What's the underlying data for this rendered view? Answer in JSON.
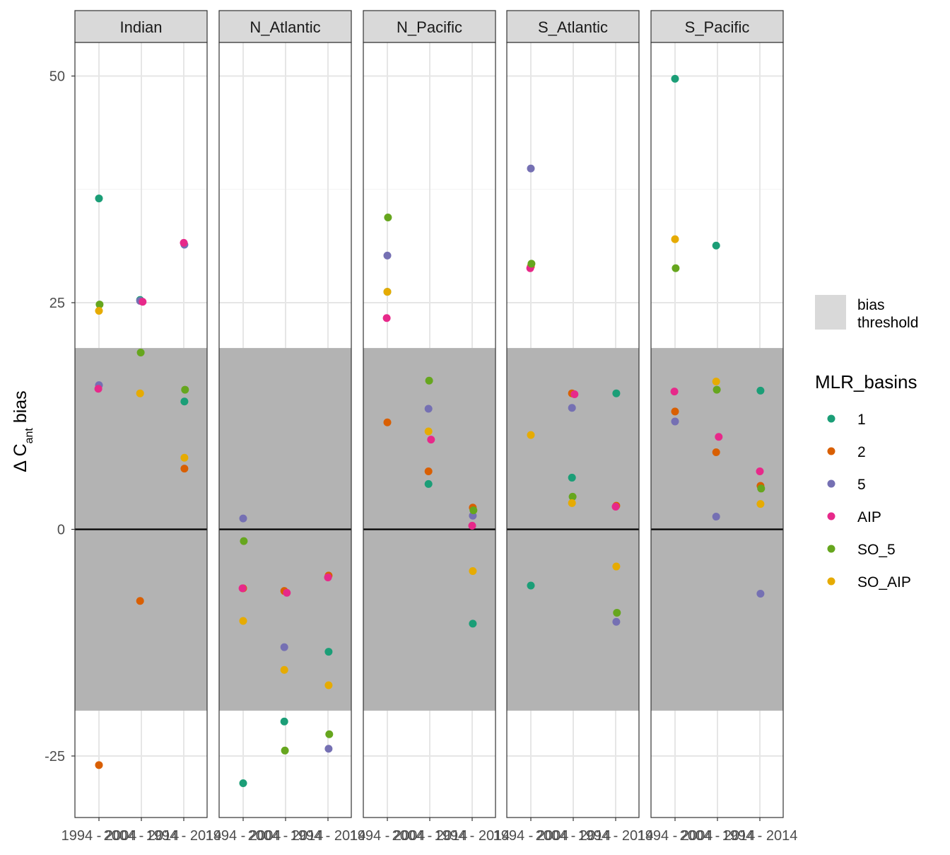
{
  "chart_data": {
    "type": "scatter",
    "facet_by": "basin",
    "panels": [
      "Indian",
      "N_Atlantic",
      "N_Pacific",
      "S_Atlantic",
      "S_Pacific"
    ],
    "x_ticks": [
      "1994 - 2004",
      "2004 - 2014",
      "1994 - 2014"
    ],
    "x_tick_label_text": [
      "1994",
      "1994",
      "2004",
      "2004",
      "2014",
      "2014"
    ],
    "y_ticks": [
      -25,
      0,
      25,
      50
    ],
    "ylim": [
      -32,
      55
    ],
    "ylabel_main": "Δ C",
    "ylabel_sub": "ant",
    "ylabel_tail": " bias",
    "threshold_band": [
      -20,
      20
    ],
    "hline": 0,
    "legend": {
      "fill_label_line1": "bias",
      "fill_label_line2": "threshold",
      "title": "MLR_basins"
    },
    "series": [
      {
        "name": "1",
        "color": "#1b9e77",
        "points": [
          {
            "panel": "Indian",
            "x": 0,
            "y": 36.5
          },
          {
            "panel": "Indian",
            "x": 1,
            "y": 25.3
          },
          {
            "panel": "Indian",
            "x": 2,
            "y": 14.1
          },
          {
            "panel": "N_Atlantic",
            "x": 0,
            "y": -28.0
          },
          {
            "panel": "N_Atlantic",
            "x": 1,
            "y": -21.2
          },
          {
            "panel": "N_Atlantic",
            "x": 2,
            "y": -13.5
          },
          {
            "panel": "N_Pacific",
            "x": 0,
            "y": 26.2
          },
          {
            "panel": "N_Pacific",
            "x": 1,
            "y": 5.0
          },
          {
            "panel": "N_Pacific",
            "x": 2,
            "y": -10.4
          },
          {
            "panel": "S_Atlantic",
            "x": 0,
            "y": -6.2
          },
          {
            "panel": "S_Atlantic",
            "x": 1,
            "y": 5.7
          },
          {
            "panel": "S_Atlantic",
            "x": 2,
            "y": 15.0
          },
          {
            "panel": "S_Pacific",
            "x": 0,
            "y": 49.7
          },
          {
            "panel": "S_Pacific",
            "x": 1,
            "y": 31.3
          },
          {
            "panel": "S_Pacific",
            "x": 2,
            "y": 15.3
          }
        ]
      },
      {
        "name": "2",
        "color": "#d95f02",
        "points": [
          {
            "panel": "Indian",
            "x": 0,
            "y": -26.0
          },
          {
            "panel": "Indian",
            "x": 1,
            "y": -7.9
          },
          {
            "panel": "Indian",
            "x": 2,
            "y": 6.7
          },
          {
            "panel": "N_Atlantic",
            "x": 0,
            "y": -6.5
          },
          {
            "panel": "N_Atlantic",
            "x": 1,
            "y": -6.8
          },
          {
            "panel": "N_Atlantic",
            "x": 2,
            "y": -5.1
          },
          {
            "panel": "N_Pacific",
            "x": 0,
            "y": 11.8
          },
          {
            "panel": "N_Pacific",
            "x": 1,
            "y": 6.4
          },
          {
            "panel": "N_Pacific",
            "x": 2,
            "y": 2.4
          },
          {
            "panel": "S_Atlantic",
            "x": 0,
            "y": 29.0
          },
          {
            "panel": "S_Atlantic",
            "x": 1,
            "y": 15.0
          },
          {
            "panel": "S_Atlantic",
            "x": 2,
            "y": 2.6
          },
          {
            "panel": "S_Pacific",
            "x": 0,
            "y": 13.0
          },
          {
            "panel": "S_Pacific",
            "x": 1,
            "y": 8.5
          },
          {
            "panel": "S_Pacific",
            "x": 2,
            "y": 4.8
          }
        ]
      },
      {
        "name": "5",
        "color": "#7570b3",
        "points": [
          {
            "panel": "Indian",
            "x": 0,
            "y": 15.9
          },
          {
            "panel": "Indian",
            "x": 1,
            "y": 25.2
          },
          {
            "panel": "Indian",
            "x": 2,
            "y": 31.4
          },
          {
            "panel": "N_Atlantic",
            "x": 0,
            "y": 1.2
          },
          {
            "panel": "N_Atlantic",
            "x": 1,
            "y": -13.0
          },
          {
            "panel": "N_Atlantic",
            "x": 2,
            "y": -24.2
          },
          {
            "panel": "N_Pacific",
            "x": 0,
            "y": 30.2
          },
          {
            "panel": "N_Pacific",
            "x": 1,
            "y": 13.3
          },
          {
            "panel": "N_Pacific",
            "x": 2,
            "y": 1.5
          },
          {
            "panel": "S_Atlantic",
            "x": 0,
            "y": 39.8
          },
          {
            "panel": "S_Atlantic",
            "x": 1,
            "y": 13.4
          },
          {
            "panel": "S_Atlantic",
            "x": 2,
            "y": -10.2
          },
          {
            "panel": "S_Pacific",
            "x": 0,
            "y": 11.9
          },
          {
            "panel": "S_Pacific",
            "x": 1,
            "y": 1.4
          },
          {
            "panel": "S_Pacific",
            "x": 2,
            "y": -7.1
          }
        ]
      },
      {
        "name": "AIP",
        "color": "#e7298a",
        "points": [
          {
            "panel": "Indian",
            "x": 0,
            "y": 15.5
          },
          {
            "panel": "Indian",
            "x": 1,
            "y": 25.1
          },
          {
            "panel": "Indian",
            "x": 2,
            "y": 31.6
          },
          {
            "panel": "N_Atlantic",
            "x": 0,
            "y": -6.5
          },
          {
            "panel": "N_Atlantic",
            "x": 1,
            "y": -7.0
          },
          {
            "panel": "N_Atlantic",
            "x": 2,
            "y": -5.3
          },
          {
            "panel": "N_Pacific",
            "x": 0,
            "y": 23.3
          },
          {
            "panel": "N_Pacific",
            "x": 1,
            "y": 9.9
          },
          {
            "panel": "N_Pacific",
            "x": 2,
            "y": 0.4
          },
          {
            "panel": "S_Atlantic",
            "x": 0,
            "y": 28.8
          },
          {
            "panel": "S_Atlantic",
            "x": 1,
            "y": 14.9
          },
          {
            "panel": "S_Atlantic",
            "x": 2,
            "y": 2.5
          },
          {
            "panel": "S_Pacific",
            "x": 0,
            "y": 15.2
          },
          {
            "panel": "S_Pacific",
            "x": 1,
            "y": 10.2
          },
          {
            "panel": "S_Pacific",
            "x": 2,
            "y": 6.4
          }
        ]
      },
      {
        "name": "SO_5",
        "color": "#66a61e",
        "points": [
          {
            "panel": "Indian",
            "x": 0,
            "y": 24.8
          },
          {
            "panel": "Indian",
            "x": 1,
            "y": 19.5
          },
          {
            "panel": "Indian",
            "x": 2,
            "y": 15.4
          },
          {
            "panel": "N_Atlantic",
            "x": 0,
            "y": -1.3
          },
          {
            "panel": "N_Atlantic",
            "x": 1,
            "y": -24.4
          },
          {
            "panel": "N_Atlantic",
            "x": 2,
            "y": -22.6
          },
          {
            "panel": "N_Pacific",
            "x": 0,
            "y": 34.4
          },
          {
            "panel": "N_Pacific",
            "x": 1,
            "y": 16.4
          },
          {
            "panel": "N_Pacific",
            "x": 2,
            "y": 2.1
          },
          {
            "panel": "S_Atlantic",
            "x": 0,
            "y": 29.3
          },
          {
            "panel": "S_Atlantic",
            "x": 1,
            "y": 3.6
          },
          {
            "panel": "S_Atlantic",
            "x": 2,
            "y": -9.2
          },
          {
            "panel": "S_Pacific",
            "x": 0,
            "y": 28.8
          },
          {
            "panel": "S_Pacific",
            "x": 1,
            "y": 15.4
          },
          {
            "panel": "S_Pacific",
            "x": 2,
            "y": 4.5
          }
        ]
      },
      {
        "name": "SO_AIP",
        "color": "#e6ab02",
        "points": [
          {
            "panel": "Indian",
            "x": 0,
            "y": 24.1
          },
          {
            "panel": "Indian",
            "x": 1,
            "y": 15.0
          },
          {
            "panel": "Indian",
            "x": 2,
            "y": 7.9
          },
          {
            "panel": "N_Atlantic",
            "x": 0,
            "y": -10.1
          },
          {
            "panel": "N_Atlantic",
            "x": 1,
            "y": -15.5
          },
          {
            "panel": "N_Atlantic",
            "x": 2,
            "y": -17.2
          },
          {
            "panel": "N_Pacific",
            "x": 0,
            "y": 26.2
          },
          {
            "panel": "N_Pacific",
            "x": 1,
            "y": 10.8
          },
          {
            "panel": "N_Pacific",
            "x": 2,
            "y": -4.6
          },
          {
            "panel": "S_Atlantic",
            "x": 0,
            "y": 10.4
          },
          {
            "panel": "S_Atlantic",
            "x": 1,
            "y": 2.9
          },
          {
            "panel": "S_Atlantic",
            "x": 2,
            "y": -4.1
          },
          {
            "panel": "S_Pacific",
            "x": 0,
            "y": 32.0
          },
          {
            "panel": "S_Pacific",
            "x": 1,
            "y": 16.3
          },
          {
            "panel": "S_Pacific",
            "x": 2,
            "y": 2.8
          }
        ]
      }
    ]
  }
}
